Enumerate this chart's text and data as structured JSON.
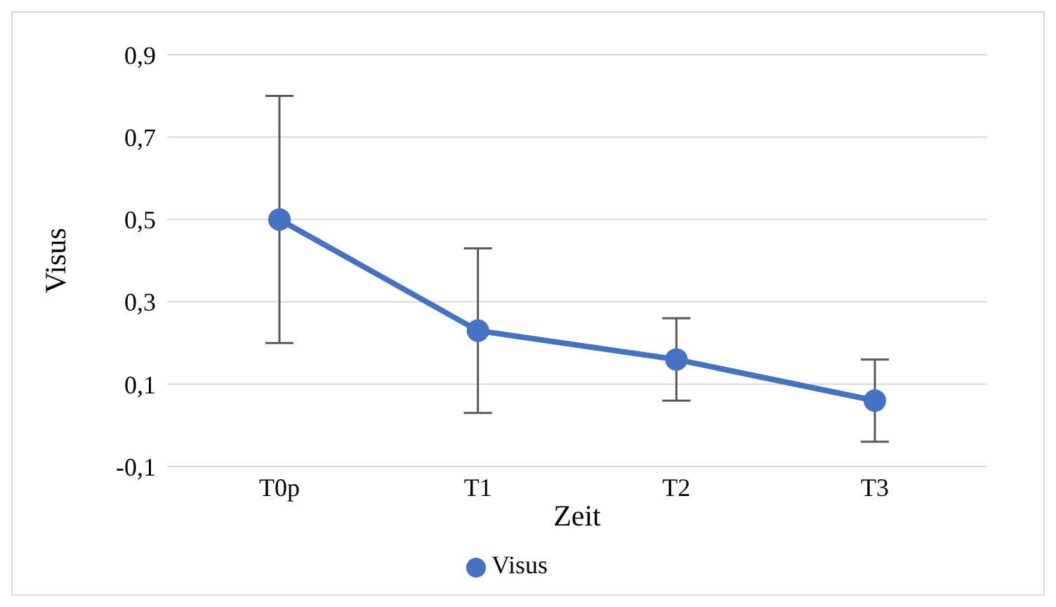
{
  "chart_data": {
    "type": "line",
    "xlabel": "Zeit",
    "ylabel": "Visus",
    "categories": [
      "T0p",
      "T1",
      "T2",
      "T3"
    ],
    "series": [
      {
        "name": "Visus",
        "color": "#4472c4",
        "values": [
          0.5,
          0.23,
          0.16,
          0.06
        ],
        "errors": [
          0.3,
          0.2,
          0.1,
          0.1
        ]
      }
    ],
    "ylim": [
      -0.1,
      0.9
    ],
    "yticks": [
      {
        "value": -0.1,
        "label": "-0,1"
      },
      {
        "value": 0.1,
        "label": "0,1"
      },
      {
        "value": 0.3,
        "label": "0,3"
      },
      {
        "value": 0.5,
        "label": "0,5"
      },
      {
        "value": 0.7,
        "label": "0,7"
      },
      {
        "value": 0.9,
        "label": "0,9"
      }
    ],
    "grid": "y",
    "legend": "bottom",
    "marker": "circle",
    "line_style": "solid"
  }
}
